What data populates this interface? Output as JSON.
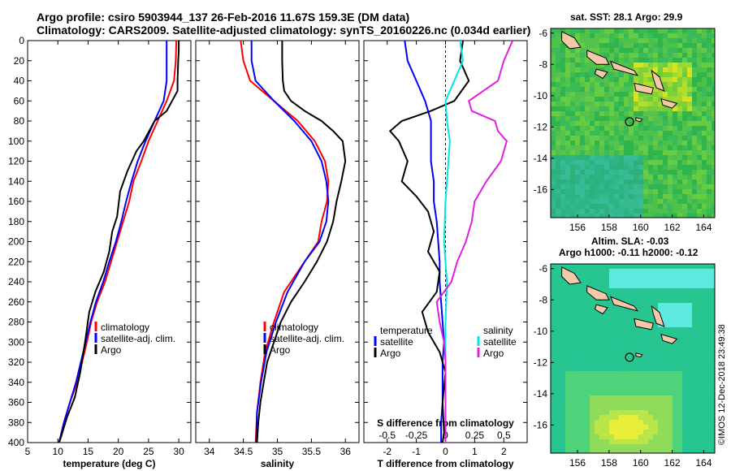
{
  "header": {
    "line1": "Argo profile: csiro 5903944_137 26-Feb-2016 11.67S 159.3E (DM data)",
    "line2": "Climatology: CARS2009. Satellite-adjusted climatology: synTS_20160226.nc (0.034d earlier)"
  },
  "maps": {
    "sst_title": "sat. SST: 28.1 Argo: 29.9",
    "sla_title1": "Altim. SLA: -0.03",
    "sla_title2": "Argo h1000: -0.11 h2000: -0.12",
    "lon_ticks": [
      "156",
      "158",
      "160",
      "162",
      "164"
    ],
    "lat_ticks": [
      "-6",
      "-8",
      "-10",
      "-12",
      "-14",
      "-16"
    ],
    "profile_location": {
      "lon": 159.3,
      "lat": -11.67
    }
  },
  "credit": "©IMOS 12-Dec-2018 23:49:38",
  "colors": {
    "climatology": "#ff0000",
    "satellite": "#0000ff",
    "argo": "#000000",
    "sal_satellite": "#00e5e5",
    "sal_argo": "#e020e0"
  },
  "chart_data": [
    {
      "type": "line",
      "title": "",
      "xlabel": "temperature (deg C)",
      "ylabel": "",
      "xlim": [
        5,
        32
      ],
      "ylim": [
        400,
        0
      ],
      "xticks": [
        "5",
        "10",
        "15",
        "20",
        "25",
        "30"
      ],
      "yticks": [
        "0",
        "20",
        "40",
        "60",
        "80",
        "100",
        "120",
        "140",
        "160",
        "180",
        "200",
        "220",
        "240",
        "260",
        "280",
        "300",
        "320",
        "340",
        "360",
        "380",
        "400"
      ],
      "legend": [
        "climatology",
        "satellite-adj. clim.",
        "Argo"
      ],
      "series": [
        {
          "name": "climatology",
          "color": "#ff0000",
          "points": [
            [
              29.6,
              0
            ],
            [
              29.5,
              20
            ],
            [
              29.2,
              40
            ],
            [
              28.0,
              60
            ],
            [
              26.5,
              80
            ],
            [
              25.0,
              100
            ],
            [
              23.8,
              120
            ],
            [
              22.5,
              140
            ],
            [
              21.8,
              160
            ],
            [
              20.8,
              180
            ],
            [
              19.8,
              200
            ],
            [
              18.8,
              220
            ],
            [
              17.8,
              240
            ],
            [
              16.5,
              260
            ],
            [
              15.5,
              280
            ],
            [
              14.8,
              300
            ],
            [
              14.0,
              320
            ],
            [
              13.2,
              340
            ],
            [
              12.0,
              360
            ],
            [
              11.0,
              380
            ],
            [
              10.2,
              400
            ]
          ]
        },
        {
          "name": "satellite-adj. clim.",
          "color": "#0000ff",
          "points": [
            [
              28.0,
              0
            ],
            [
              28.0,
              20
            ],
            [
              28.0,
              40
            ],
            [
              27.5,
              60
            ],
            [
              26.0,
              80
            ],
            [
              24.5,
              100
            ],
            [
              23.2,
              120
            ],
            [
              22.2,
              140
            ],
            [
              21.3,
              160
            ],
            [
              20.5,
              180
            ],
            [
              19.6,
              200
            ],
            [
              18.5,
              220
            ],
            [
              17.5,
              240
            ],
            [
              16.3,
              260
            ],
            [
              15.4,
              280
            ],
            [
              14.6,
              300
            ],
            [
              13.8,
              320
            ],
            [
              13.0,
              340
            ],
            [
              12.0,
              360
            ],
            [
              11.0,
              380
            ],
            [
              10.2,
              400
            ]
          ]
        },
        {
          "name": "Argo",
          "color": "#000000",
          "points": [
            [
              30.0,
              0
            ],
            [
              30.0,
              10
            ],
            [
              29.9,
              20
            ],
            [
              29.8,
              40
            ],
            [
              29.8,
              50
            ],
            [
              28.0,
              70
            ],
            [
              26.0,
              80
            ],
            [
              24.2,
              100
            ],
            [
              23.0,
              110
            ],
            [
              21.5,
              130
            ],
            [
              20.3,
              150
            ],
            [
              19.8,
              175
            ],
            [
              19.0,
              190
            ],
            [
              18.5,
              210
            ],
            [
              17.6,
              230
            ],
            [
              16.2,
              250
            ],
            [
              15.2,
              270
            ],
            [
              14.5,
              300
            ],
            [
              13.7,
              330
            ],
            [
              12.8,
              355
            ],
            [
              11.5,
              375
            ],
            [
              10.5,
              395
            ],
            [
              10.2,
              400
            ]
          ]
        }
      ]
    },
    {
      "type": "line",
      "title": "",
      "xlabel": "salinity",
      "ylabel": "",
      "xlim": [
        33.8,
        36.2
      ],
      "ylim": [
        400,
        0
      ],
      "xticks": [
        "34",
        "34.5",
        "35",
        "35.5",
        "36"
      ],
      "legend": [
        "climatology",
        "satellite-adj. clim.",
        "Argo"
      ],
      "series": [
        {
          "name": "climatology",
          "color": "#ff0000",
          "points": [
            [
              34.46,
              0
            ],
            [
              34.5,
              20
            ],
            [
              34.6,
              40
            ],
            [
              34.95,
              60
            ],
            [
              35.3,
              80
            ],
            [
              35.55,
              100
            ],
            [
              35.7,
              120
            ],
            [
              35.75,
              140
            ],
            [
              35.73,
              160
            ],
            [
              35.65,
              180
            ],
            [
              35.6,
              200
            ],
            [
              35.4,
              220
            ],
            [
              35.1,
              250
            ],
            [
              34.95,
              280
            ],
            [
              34.82,
              310
            ],
            [
              34.75,
              340
            ],
            [
              34.7,
              370
            ],
            [
              34.68,
              400
            ]
          ]
        },
        {
          "name": "satellite-adj. clim.",
          "color": "#0000ff",
          "points": [
            [
              34.62,
              0
            ],
            [
              34.62,
              20
            ],
            [
              34.68,
              40
            ],
            [
              34.95,
              60
            ],
            [
              35.25,
              80
            ],
            [
              35.5,
              100
            ],
            [
              35.65,
              120
            ],
            [
              35.72,
              140
            ],
            [
              35.75,
              160
            ],
            [
              35.72,
              180
            ],
            [
              35.62,
              200
            ],
            [
              35.4,
              220
            ],
            [
              35.15,
              250
            ],
            [
              34.98,
              280
            ],
            [
              34.84,
              310
            ],
            [
              34.76,
              340
            ],
            [
              34.7,
              370
            ],
            [
              34.69,
              400
            ]
          ]
        },
        {
          "name": "Argo",
          "color": "#000000",
          "points": [
            [
              35.07,
              0
            ],
            [
              35.07,
              20
            ],
            [
              35.08,
              40
            ],
            [
              35.1,
              50
            ],
            [
              35.2,
              60
            ],
            [
              35.4,
              70
            ],
            [
              35.65,
              80
            ],
            [
              35.82,
              90
            ],
            [
              35.96,
              100
            ],
            [
              36.0,
              120
            ],
            [
              35.94,
              140
            ],
            [
              35.87,
              160
            ],
            [
              35.82,
              180
            ],
            [
              35.73,
              200
            ],
            [
              35.58,
              220
            ],
            [
              35.4,
              240
            ],
            [
              35.2,
              260
            ],
            [
              35.05,
              280
            ],
            [
              34.95,
              300
            ],
            [
              34.85,
              320
            ],
            [
              34.8,
              340
            ],
            [
              34.75,
              360
            ],
            [
              34.72,
              380
            ],
            [
              34.7,
              400
            ]
          ]
        }
      ]
    },
    {
      "type": "line",
      "title": "",
      "xlabel": "T difference from climatology",
      "secondary_xlabel": "S difference from climatology",
      "xlim": [
        -2.8,
        2.8
      ],
      "ylim": [
        400,
        0
      ],
      "xticks": [
        "-2",
        "-1",
        "0",
        "1",
        "2"
      ],
      "secondary_xticks": [
        "-0.5",
        "-0.25",
        "0",
        "0.25",
        "0.5"
      ],
      "legend": [
        "temperature",
        "satellite",
        "Argo",
        "salinity",
        "satellite",
        "Argo"
      ],
      "series": [
        {
          "name": "temperature satellite",
          "color": "#0000ff",
          "points": [
            [
              -1.4,
              0
            ],
            [
              -1.3,
              20
            ],
            [
              -1.0,
              40
            ],
            [
              -0.7,
              60
            ],
            [
              -0.5,
              80
            ],
            [
              -0.5,
              100
            ],
            [
              -0.5,
              120
            ],
            [
              -0.4,
              140
            ],
            [
              -0.4,
              160
            ],
            [
              -0.3,
              180
            ],
            [
              -0.25,
              200
            ],
            [
              -0.2,
              220
            ],
            [
              -0.2,
              240
            ],
            [
              -0.15,
              260
            ],
            [
              -0.1,
              280
            ],
            [
              -0.05,
              300
            ],
            [
              -0.1,
              320
            ],
            [
              -0.1,
              340
            ],
            [
              -0.1,
              360
            ],
            [
              -0.15,
              380
            ],
            [
              -0.15,
              400
            ]
          ]
        },
        {
          "name": "temperature Argo",
          "color": "#000000",
          "points": [
            [
              0.6,
              0
            ],
            [
              0.5,
              20
            ],
            [
              0.8,
              40
            ],
            [
              0.3,
              60
            ],
            [
              -0.5,
              70
            ],
            [
              -1.5,
              80
            ],
            [
              -1.9,
              90
            ],
            [
              -1.6,
              100
            ],
            [
              -1.3,
              120
            ],
            [
              -1.5,
              140
            ],
            [
              -1.0,
              155
            ],
            [
              -0.6,
              170
            ],
            [
              -0.4,
              190
            ],
            [
              -0.6,
              210
            ],
            [
              -0.2,
              230
            ],
            [
              -0.3,
              250
            ],
            [
              -0.8,
              270
            ],
            [
              -0.6,
              290
            ],
            [
              -0.2,
              310
            ],
            [
              0.0,
              330
            ],
            [
              -0.1,
              360
            ],
            [
              -0.05,
              390
            ],
            [
              -0.1,
              400
            ]
          ]
        },
        {
          "name": "salinity satellite",
          "color": "#00e5e5",
          "points": [
            [
              0.5,
              0
            ],
            [
              0.6,
              20
            ],
            [
              0.3,
              40
            ],
            [
              0.0,
              60
            ],
            [
              0.05,
              80
            ],
            [
              0.15,
              100
            ],
            [
              0.1,
              120
            ],
            [
              0.05,
              140
            ],
            [
              0.0,
              160
            ],
            [
              -0.05,
              200
            ],
            [
              0.05,
              240
            ],
            [
              0.0,
              280
            ],
            [
              0.0,
              320
            ],
            [
              0.0,
              360
            ],
            [
              0.0,
              400
            ]
          ]
        },
        {
          "name": "salinity Argo",
          "color": "#e020e0",
          "points": [
            [
              2.3,
              0
            ],
            [
              2.0,
              20
            ],
            [
              1.8,
              40
            ],
            [
              0.8,
              60
            ],
            [
              0.9,
              70
            ],
            [
              1.7,
              80
            ],
            [
              1.8,
              90
            ],
            [
              2.1,
              100
            ],
            [
              1.9,
              120
            ],
            [
              1.4,
              140
            ],
            [
              1.0,
              160
            ],
            [
              0.9,
              180
            ],
            [
              0.7,
              200
            ],
            [
              0.4,
              220
            ],
            [
              0.2,
              240
            ],
            [
              -0.3,
              260
            ],
            [
              -0.2,
              280
            ],
            [
              -0.05,
              300
            ],
            [
              0.0,
              320
            ],
            [
              0.0,
              360
            ],
            [
              0.0,
              400
            ]
          ]
        }
      ]
    }
  ]
}
